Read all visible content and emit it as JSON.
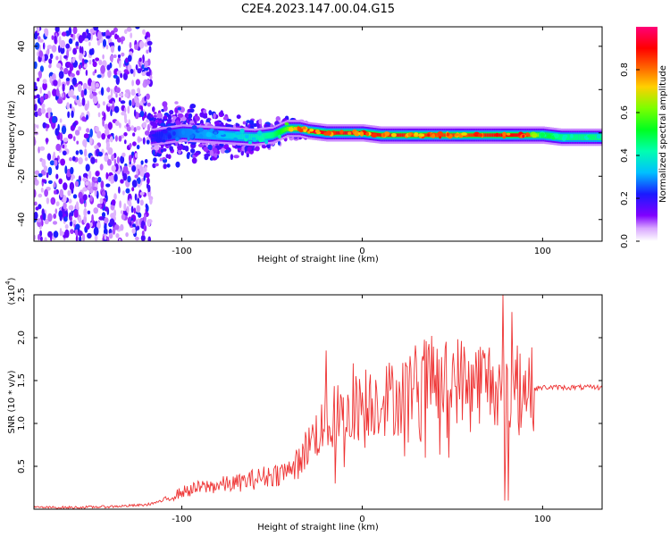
{
  "figure_title": "C2E4.2023.147.00.04.G15",
  "colorbar": {
    "label": "Normalized spectral amplitude",
    "ticks": [
      "0.0",
      "0.2",
      "0.4",
      "0.6",
      "0.8"
    ],
    "tick_values": [
      0.0,
      0.2,
      0.4,
      0.6,
      0.8
    ],
    "range": [
      0,
      1
    ],
    "colormap": "gist_rainbow_r"
  },
  "chart_data": [
    {
      "type": "heatmap",
      "title": "",
      "xlabel": "Height of straight line (km)",
      "ylabel": "Frequency (Hz)",
      "xlim": [
        -182,
        133
      ],
      "ylim": [
        -50,
        49
      ],
      "xticks": [
        "-100",
        "0",
        "100"
      ],
      "xtick_values": [
        -100,
        0,
        100
      ],
      "yticks": [
        "40",
        "20",
        "0",
        "-20",
        "-40"
      ],
      "ytick_values": [
        40,
        20,
        0,
        -20,
        -40
      ],
      "noise_region_x": [
        -182,
        -117
      ],
      "ridge": {
        "x": [
          -117,
          -100,
          -80,
          -60,
          -50,
          -42,
          -35,
          -30,
          -20,
          -10,
          0,
          10,
          20,
          30,
          40,
          50,
          60,
          70,
          80,
          90,
          100,
          110,
          120,
          133
        ],
        "freq_hz": [
          -2,
          0,
          -1,
          -2,
          -1,
          2,
          2,
          1,
          0,
          0,
          0,
          -1,
          -1,
          -1,
          -1,
          -1,
          -1,
          -1,
          -1,
          -1,
          -1,
          -2,
          -2,
          -2
        ],
        "amplitude": [
          0.2,
          0.28,
          0.32,
          0.4,
          0.45,
          0.6,
          0.85,
          0.9,
          0.92,
          0.92,
          0.9,
          0.88,
          0.88,
          0.85,
          0.85,
          0.85,
          0.85,
          0.88,
          0.9,
          0.92,
          0.5,
          0.45,
          0.45,
          0.45
        ]
      }
    },
    {
      "type": "line",
      "title": "",
      "xlabel": "Height of straight line (km)",
      "ylabel": "SNR (10 * v/v)",
      "y_multiplier_label": "(x10",
      "y_multiplier_exp": "4",
      "xlim": [
        -182,
        133
      ],
      "ylim": [
        0,
        2.5
      ],
      "xticks": [
        "-100",
        "0",
        "100"
      ],
      "xtick_values": [
        -100,
        0,
        100
      ],
      "yticks": [
        "0.5",
        "1.0",
        "1.5",
        "2.0",
        "2.5"
      ],
      "ytick_values": [
        0.5,
        1.0,
        1.5,
        2.0,
        2.5
      ],
      "color": "#ee3333",
      "series": [
        {
          "x": [
            -182,
            -160,
            -140,
            -120,
            -110,
            -100,
            -90,
            -80,
            -70,
            -60,
            -50,
            -40,
            -35,
            -30,
            -25,
            -20,
            -15,
            -10,
            -5,
            0,
            5,
            10,
            15,
            20,
            25,
            30,
            35,
            40,
            45,
            50,
            55,
            60,
            65,
            70,
            75,
            78,
            80,
            82,
            85,
            90,
            95,
            100,
            110,
            120,
            133
          ],
          "y": [
            0.02,
            0.02,
            0.03,
            0.05,
            0.1,
            0.2,
            0.25,
            0.28,
            0.3,
            0.35,
            0.4,
            0.45,
            0.55,
            0.75,
            0.9,
            1.0,
            1.1,
            1.05,
            1.15,
            1.25,
            1.25,
            1.3,
            1.3,
            1.3,
            1.4,
            1.45,
            1.5,
            1.5,
            1.45,
            1.55,
            1.5,
            1.5,
            1.5,
            1.5,
            1.45,
            1.2,
            1.5,
            1.3,
            1.5,
            1.45,
            1.4,
            1.42,
            1.42,
            1.42,
            1.42
          ]
        }
      ],
      "spikes": [
        {
          "x": -20,
          "y": 1.85
        },
        {
          "x": -15,
          "y": 0.3
        },
        {
          "x": -5,
          "y": 1.7
        },
        {
          "x": 30,
          "y": 1.75
        },
        {
          "x": 35,
          "y": 0.6
        },
        {
          "x": 48,
          "y": 0.6
        },
        {
          "x": 60,
          "y": 0.9
        },
        {
          "x": 78,
          "y": 2.5
        },
        {
          "x": 79,
          "y": 0.1
        },
        {
          "x": 81,
          "y": 0.1
        },
        {
          "x": 83,
          "y": 2.3
        },
        {
          "x": 88,
          "y": 0.95
        }
      ]
    }
  ]
}
